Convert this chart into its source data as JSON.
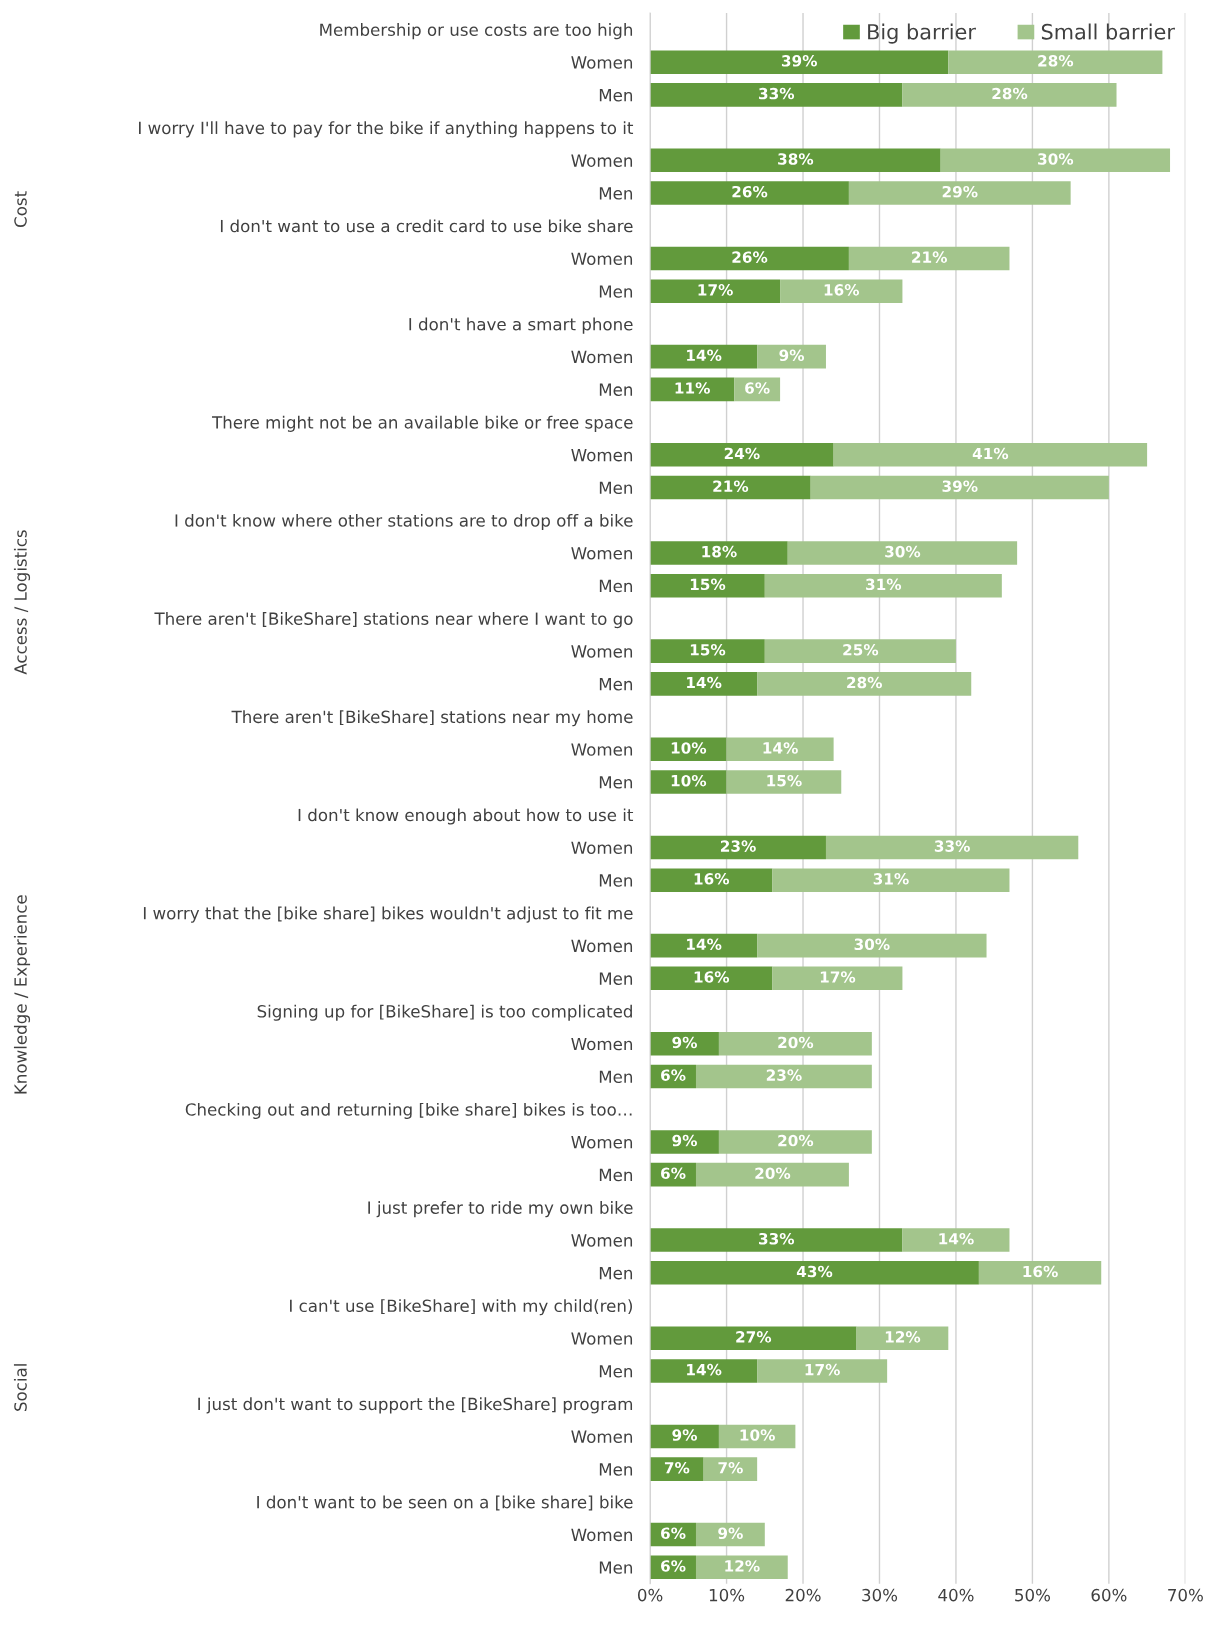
{
  "chart_data": {
    "type": "bar",
    "orientation": "horizontal",
    "stacked": true,
    "grid": "x",
    "legend": "top right",
    "categories": [
      "Membership or use costs are too high",
      "Women",
      "Men",
      "I worry I'll have to pay for the bike if anything happens to it",
      "Women",
      "Men",
      "I don't want to use a credit card to use bike share",
      "Women",
      "Men",
      "I don't have a smart phone",
      "Women",
      "Men",
      "There might not be an available bike or free space",
      "Women",
      "Men",
      "I don't know where other stations are to drop off a bike",
      "Women",
      "Men",
      "There aren't [BikeShare] stations near where I want to go",
      "Women",
      "Men",
      "There aren't [BikeShare] stations near my home",
      "Women",
      "Men",
      "I don't know enough about how to use it",
      "Women",
      "Men",
      "I worry that the [bike share] bikes wouldn't adjust to fit me",
      "Women",
      "Men",
      "Signing up for [BikeShare] is too complicated",
      "Women",
      "Men",
      "Checking out and returning [bike share] bikes is too…",
      "Women",
      "Men",
      "I just prefer to ride my own bike",
      "Women",
      "Men",
      "I can't use [BikeShare] with my child(ren)",
      "Women",
      "Men",
      "I just don't want to support the [BikeShare] program",
      "Women",
      "Men",
      "I don't want to be seen on a [bike share] bike",
      "Women",
      "Men"
    ],
    "series": [
      {
        "name": "Big barrier",
        "color": "#629a3c",
        "values": [
          null,
          39,
          33,
          null,
          38,
          26,
          null,
          26,
          17,
          null,
          14,
          11,
          null,
          24,
          21,
          null,
          18,
          15,
          null,
          15,
          14,
          null,
          10,
          10,
          null,
          23,
          16,
          null,
          14,
          16,
          null,
          9,
          6,
          null,
          9,
          6,
          null,
          33,
          43,
          null,
          27,
          14,
          null,
          9,
          7,
          null,
          6,
          6
        ],
        "value_labels": [
          null,
          "39%",
          "33%",
          null,
          "38%",
          "26%",
          null,
          "26%",
          "17%",
          null,
          "14%",
          "11%",
          null,
          "24%",
          "21%",
          null,
          "18%",
          "15%",
          null,
          "15%",
          "14%",
          null,
          "10%",
          "10%",
          null,
          "23%",
          "16%",
          null,
          "14%",
          "16%",
          null,
          "9%",
          "6%",
          null,
          "9%",
          "6%",
          null,
          "33%",
          "43%",
          null,
          "27%",
          "14%",
          null,
          "9%",
          "7%",
          null,
          "6%",
          "6%"
        ]
      },
      {
        "name": "Small barrier",
        "color": "#a3c58c",
        "values": [
          null,
          28,
          28,
          null,
          30,
          29,
          null,
          21,
          16,
          null,
          9,
          6,
          null,
          41,
          39,
          null,
          30,
          31,
          null,
          25,
          28,
          null,
          14,
          15,
          null,
          33,
          31,
          null,
          30,
          17,
          null,
          20,
          23,
          null,
          20,
          20,
          null,
          14,
          16,
          null,
          12,
          17,
          null,
          10,
          7,
          null,
          9,
          12
        ],
        "value_labels": [
          null,
          "28%",
          "28%",
          null,
          "30%",
          "29%",
          null,
          "21%",
          "16%",
          null,
          "9%",
          "6%",
          null,
          "41%",
          "39%",
          null,
          "30%",
          "31%",
          null,
          "25%",
          "28%",
          null,
          "14%",
          "15%",
          null,
          "33%",
          "31%",
          null,
          "30%",
          "17%",
          null,
          "20%",
          "23%",
          null,
          "20%",
          "20%",
          null,
          "14%",
          "16%",
          null,
          "12%",
          "17%",
          null,
          "10%",
          "7%",
          null,
          "9%",
          "12%"
        ]
      }
    ],
    "xlim": [
      0,
      70
    ],
    "xticks": [
      {
        "value": 0,
        "label": "0%"
      },
      {
        "value": 10,
        "label": "10%"
      },
      {
        "value": 20,
        "label": "20%"
      },
      {
        "value": 30,
        "label": "30%"
      },
      {
        "value": 40,
        "label": "40%"
      },
      {
        "value": 50,
        "label": "50%"
      },
      {
        "value": 60,
        "label": "60%"
      },
      {
        "value": 70,
        "label": "70%"
      }
    ],
    "annotations": [
      "Cost",
      "Access / Logistics",
      "Knowledge / Experience",
      "Social"
    ]
  }
}
